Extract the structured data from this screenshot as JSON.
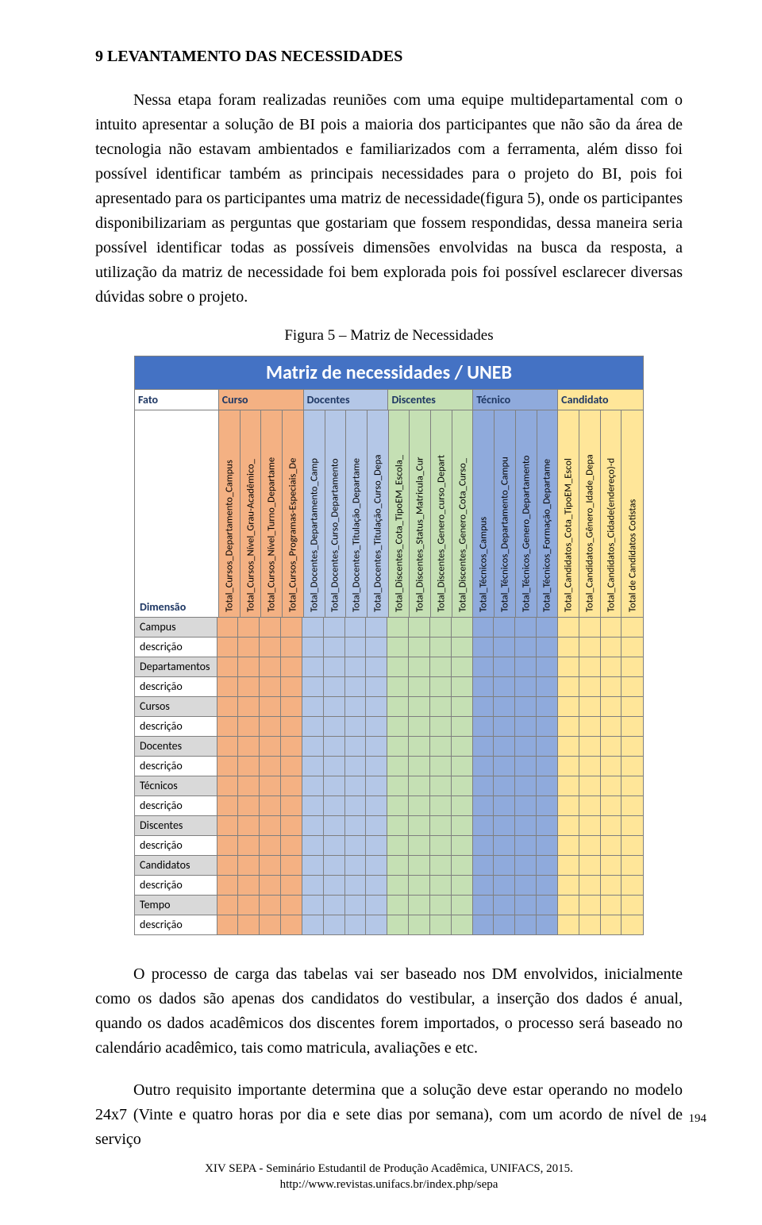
{
  "heading": "9 LEVANTAMENTO DAS NECESSIDADES",
  "para1": "Nessa etapa foram realizadas reuniões com uma equipe multidepartamental com o intuito apresentar a solução de BI pois a maioria dos participantes que não são da área de tecnologia não estavam ambientados e familiarizados com a ferramenta, além disso foi possível identificar também as principais necessidades para o projeto do BI, pois foi apresentado para os participantes uma matriz de necessidade(figura 5), onde os participantes disponibilizariam as perguntas que gostariam que fossem respondidas, dessa maneira seria possível identificar todas as possíveis dimensões envolvidas na busca da resposta, a utilização da matriz de necessidade foi bem explorada pois foi possível esclarecer diversas dúvidas sobre o projeto.",
  "fig_caption": "Figura 5 – Matriz de Necessidades",
  "matrix": {
    "title": "Matriz de necessidades / UNEB",
    "first_col_w": 110,
    "col_w": 27.8,
    "fato_label": "Fato",
    "dimensao_label": "Dimensão",
    "groups": [
      {
        "label": "Curso",
        "bg": "#f4b183",
        "cols": [
          "Total_Cursos_Departamento_Campus",
          "Total_Cursos_Nível_Grau-Acadêmico_",
          "Total_Cursos_Nível_Turno_Departame",
          "Total_Cursos_Programas-Especiais_De"
        ]
      },
      {
        "label": "Docentes",
        "bg": "#b4c7e7",
        "cols": [
          "Total_Docentes_Departamento_Camp",
          "Total_Docentes_Curso_Departamento",
          "Total_Docentes_Titulação_Departame",
          "Total_Docentes_Titulação_Curso_Depa"
        ]
      },
      {
        "label": "Discentes",
        "bg": "#c5e0b4",
        "cols": [
          "Total_Discentes_Cota_TipoEM_Escola_",
          "Total_Discentes_Status_Matricula_Cur",
          "Total_Discentes_Genero_curso_Depart",
          "Total_Discentes_Genero_Cota_Curso_"
        ]
      },
      {
        "label": "Técnico",
        "bg": "#8faadc",
        "cols": [
          "Total_Técnicos_Campus",
          "Total_Técnicos_Departamento_Campu",
          "Total_Técnicos_Genero_Departamento",
          "Total_Técnicos_Formação_Departame"
        ]
      },
      {
        "label": "Candidato",
        "bg": "#ffe699",
        "cols": [
          "Total_Candidatos_Cota_TipoEM_Escol",
          "Total_Candidatos_Gênero_Idade_Depa",
          "Total_Candidatos_Cidade(endereço)-d",
          "Total de Candidatos Cotistas"
        ]
      }
    ],
    "dim_rows": [
      {
        "label": "Campus",
        "bg": "#d9d9d9"
      },
      {
        "label": "descrição",
        "bg": "#ffffff"
      },
      {
        "label": "Departamentos",
        "bg": "#d9d9d9"
      },
      {
        "label": "descrição",
        "bg": "#ffffff"
      },
      {
        "label": "Cursos",
        "bg": "#d9d9d9"
      },
      {
        "label": "descrição",
        "bg": "#ffffff"
      },
      {
        "label": "Docentes",
        "bg": "#d9d9d9"
      },
      {
        "label": "descrição",
        "bg": "#ffffff"
      },
      {
        "label": "Técnicos",
        "bg": "#d9d9d9"
      },
      {
        "label": "descrição",
        "bg": "#ffffff"
      },
      {
        "label": "Discentes",
        "bg": "#d9d9d9"
      },
      {
        "label": "descrição",
        "bg": "#ffffff"
      },
      {
        "label": "Candidatos",
        "bg": "#d9d9d9"
      },
      {
        "label": "descrição",
        "bg": "#ffffff"
      },
      {
        "label": "Tempo",
        "bg": "#d9d9d9"
      },
      {
        "label": "descrição",
        "bg": "#ffffff"
      }
    ]
  },
  "para2": "O processo de carga das tabelas vai ser baseado nos DM envolvidos, inicialmente como os dados são apenas dos candidatos do vestibular, a inserção dos dados é anual, quando os dados acadêmicos dos discentes forem importados, o processo será baseado no calendário acadêmico, tais como matricula, avaliações e etc.",
  "para3": "Outro requisito importante determina que a solução deve estar operando no modelo 24x7 (Vinte e quatro horas por dia e sete dias por semana), com um acordo de nível de serviço",
  "footer_line1": "XIV SEPA - Seminário Estudantil de Produção Acadêmica, UNIFACS, 2015.",
  "footer_line2": "http://www.revistas.unifacs.br/index.php/sepa",
  "page_number": "194"
}
